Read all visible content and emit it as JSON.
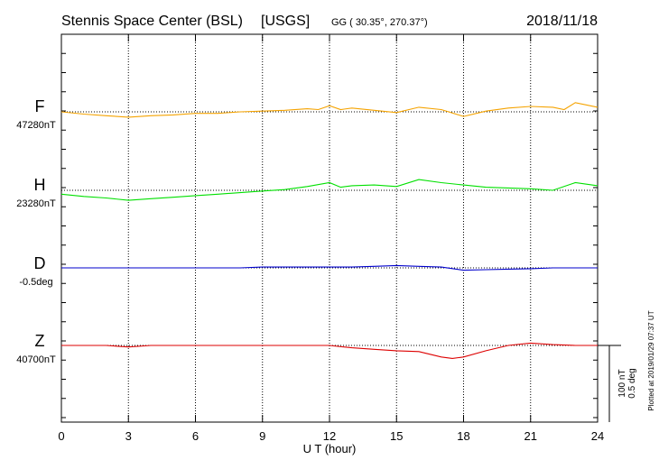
{
  "header": {
    "station": "Stennis Space Center (BSL)",
    "network": "[USGS]",
    "coords": "GG ( 30.35°, 270.37°)",
    "date": "2018/11/18"
  },
  "footer": {
    "xlabel": "U T (hour)",
    "plotted_note": "Plotted at 2019/01/29 07:37 UT"
  },
  "scale": {
    "nt_label": "100 nT",
    "deg_label": "0.5 deg"
  },
  "components": [
    {
      "letter": "F",
      "baseline": "47280nT",
      "color": "#f5a300"
    },
    {
      "letter": "H",
      "baseline": "23280nT",
      "color": "#00e000"
    },
    {
      "letter": "D",
      "baseline": "-0.5deg",
      "color": "#0000cc"
    },
    {
      "letter": "Z",
      "baseline": "40700nT",
      "color": "#dd0000"
    }
  ],
  "chart_data": {
    "type": "line",
    "title": "Stennis Space Center (BSL)",
    "xlabel": "U T (hour)",
    "ylabel": "",
    "xlim": [
      0,
      24
    ],
    "x_ticks": [
      0,
      3,
      6,
      9,
      12,
      15,
      18,
      21,
      24
    ],
    "grid": true,
    "units_per_scale_bar": {
      "nT": 100,
      "deg": 0.5
    },
    "series": [
      {
        "name": "F",
        "baseline": 47280,
        "unit": "nT",
        "x": [
          0,
          1,
          2,
          3,
          4,
          5,
          6,
          7,
          8,
          9,
          10,
          11,
          11.5,
          12,
          12.5,
          13,
          14,
          15,
          16,
          17,
          18,
          19,
          20,
          21,
          22,
          22.5,
          23,
          24
        ],
        "y": [
          0,
          -3,
          -5,
          -7,
          -5,
          -4,
          -2,
          -2,
          0,
          1,
          2,
          4,
          3,
          8,
          3,
          5,
          2,
          -1,
          6,
          3,
          -6,
          1,
          5,
          7,
          6,
          3,
          12,
          6
        ]
      },
      {
        "name": "H",
        "baseline": 23280,
        "unit": "nT",
        "x": [
          0,
          1,
          2,
          3,
          4,
          5,
          6,
          7,
          8,
          9,
          10,
          11,
          12,
          12.5,
          13,
          14,
          15,
          16,
          17,
          18,
          19,
          20,
          21,
          22,
          23,
          24
        ],
        "y": [
          -5,
          -8,
          -10,
          -13,
          -11,
          -9,
          -7,
          -5,
          -3,
          -1,
          1,
          5,
          10,
          4,
          6,
          7,
          5,
          14,
          10,
          7,
          4,
          3,
          2,
          0,
          10,
          6
        ]
      },
      {
        "name": "D",
        "baseline": -0.5,
        "unit": "deg",
        "x": [
          0,
          1,
          2,
          3,
          4,
          5,
          6,
          7,
          8,
          9,
          10,
          11,
          12,
          13,
          14,
          15,
          16,
          17,
          18,
          19,
          20,
          21,
          22,
          23,
          24
        ],
        "y": [
          0,
          0,
          0,
          0,
          0,
          0,
          0,
          0,
          0,
          0.005,
          0.005,
          0.005,
          0.005,
          0.005,
          0.01,
          0.015,
          0.01,
          0.005,
          -0.015,
          -0.012,
          -0.008,
          -0.005,
          0,
          0,
          0
        ]
      },
      {
        "name": "Z",
        "baseline": 40700,
        "unit": "nT",
        "x": [
          0,
          1,
          2,
          3,
          4,
          5,
          6,
          7,
          8,
          9,
          10,
          11,
          12,
          13,
          14,
          15,
          16,
          17,
          17.5,
          18,
          19,
          20,
          21,
          22,
          23,
          24
        ],
        "y": [
          0,
          0,
          0,
          -2,
          0,
          0,
          0,
          0,
          0,
          0,
          0,
          0,
          0,
          -3,
          -5,
          -7,
          -8,
          -15,
          -17,
          -15,
          -7,
          0,
          3,
          1,
          0,
          0
        ]
      }
    ]
  }
}
